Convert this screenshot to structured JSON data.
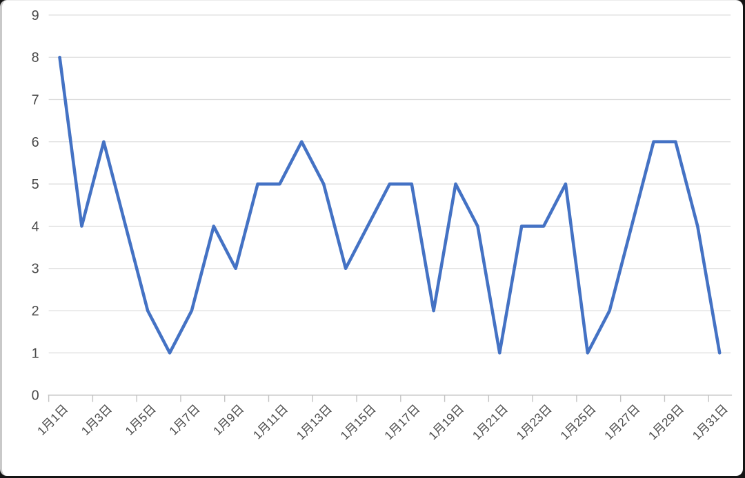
{
  "chart_data": {
    "type": "line",
    "title": "",
    "xlabel": "",
    "ylabel": "",
    "categories": [
      "1月1日",
      "1月2日",
      "1月3日",
      "1月4日",
      "1月5日",
      "1月6日",
      "1月7日",
      "1月8日",
      "1月9日",
      "1月10日",
      "1月11日",
      "1月12日",
      "1月13日",
      "1月14日",
      "1月15日",
      "1月16日",
      "1月17日",
      "1月18日",
      "1月19日",
      "1月20日",
      "1月21日",
      "1月22日",
      "1月23日",
      "1月24日",
      "1月25日",
      "1月26日",
      "1月27日",
      "1月28日",
      "1月29日",
      "1月30日",
      "1月31日"
    ],
    "series": [
      {
        "name": "",
        "values": [
          8,
          4,
          6,
          4,
          2,
          1,
          2,
          4,
          3,
          5,
          5,
          6,
          5,
          3,
          4,
          5,
          5,
          2,
          5,
          4,
          1,
          4,
          4,
          5,
          1,
          2,
          4,
          6,
          6,
          4,
          1
        ]
      }
    ],
    "x_tick_labels": [
      "1月1日",
      "1月3日",
      "1月5日",
      "1月7日",
      "1月9日",
      "1月11日",
      "1月13日",
      "1月15日",
      "1月17日",
      "1月19日",
      "1月21日",
      "1月23日",
      "1月25日",
      "1月27日",
      "1月29日",
      "1月31日"
    ],
    "x_label_every": 2,
    "y_ticks": [
      0,
      1,
      2,
      3,
      4,
      5,
      6,
      7,
      8,
      9
    ],
    "ylim": [
      0,
      9
    ],
    "grid": true,
    "legend": false,
    "x_label_rotation_deg": -45,
    "colors": {
      "line": "#4472C4",
      "gridline": "#DCDCDC",
      "axis": "#C3C3C3",
      "tick": "#C3C3C3",
      "label": "#4A4A4A",
      "background": "#FFFFFF"
    }
  }
}
